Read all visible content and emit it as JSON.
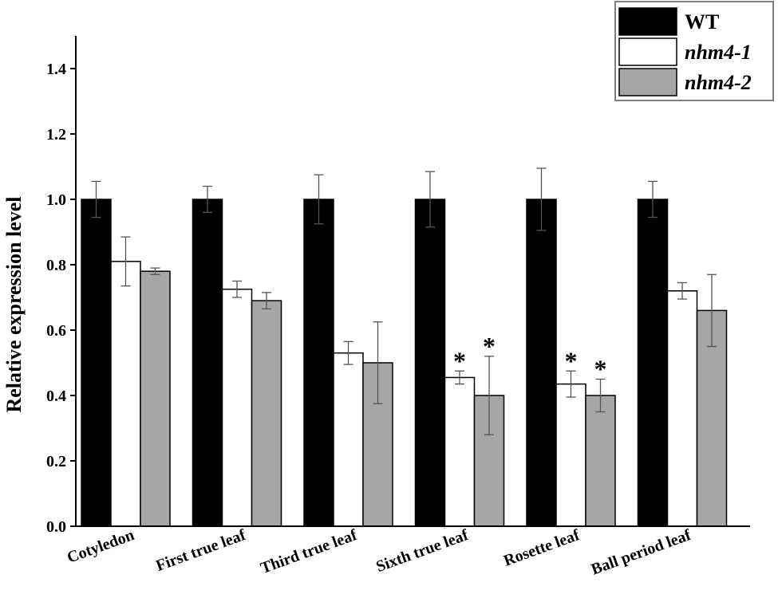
{
  "chart_data": {
    "type": "bar",
    "title": "",
    "xlabel": "",
    "ylabel": "Relative expression level",
    "ylim": [
      0,
      1.5
    ],
    "yticks": [
      "0.0",
      "0.2",
      "0.4",
      "0.6",
      "0.8",
      "1.0",
      "1.2",
      "1.4"
    ],
    "categories": [
      "Cotyledon",
      "First true leaf",
      "Third true leaf",
      "Sixth true leaf",
      "Rosette leaf",
      "Ball period leaf"
    ],
    "series": [
      {
        "name": "WT",
        "italic": false,
        "color": "#000000",
        "values": [
          1.0,
          1.0,
          1.0,
          1.0,
          1.0,
          1.0
        ],
        "errors": [
          0.055,
          0.04,
          0.075,
          0.085,
          0.095,
          0.055
        ],
        "significance": [
          "",
          "",
          "",
          "",
          "",
          ""
        ]
      },
      {
        "name": "nhm4-1",
        "italic": true,
        "color": "#ffffff",
        "values": [
          0.81,
          0.725,
          0.53,
          0.455,
          0.435,
          0.72
        ],
        "errors": [
          0.075,
          0.025,
          0.035,
          0.02,
          0.04,
          0.025
        ],
        "significance": [
          "",
          "",
          "",
          "*",
          "*",
          ""
        ]
      },
      {
        "name": "nhm4-2",
        "italic": true,
        "color": "#a6a6a6",
        "values": [
          0.78,
          0.69,
          0.5,
          0.4,
          0.4,
          0.66
        ],
        "errors": [
          0.01,
          0.025,
          0.125,
          0.12,
          0.05,
          0.11
        ],
        "significance": [
          "",
          "",
          "",
          "*",
          "*",
          ""
        ]
      }
    ],
    "legend_position": "top-right",
    "grid": false
  }
}
